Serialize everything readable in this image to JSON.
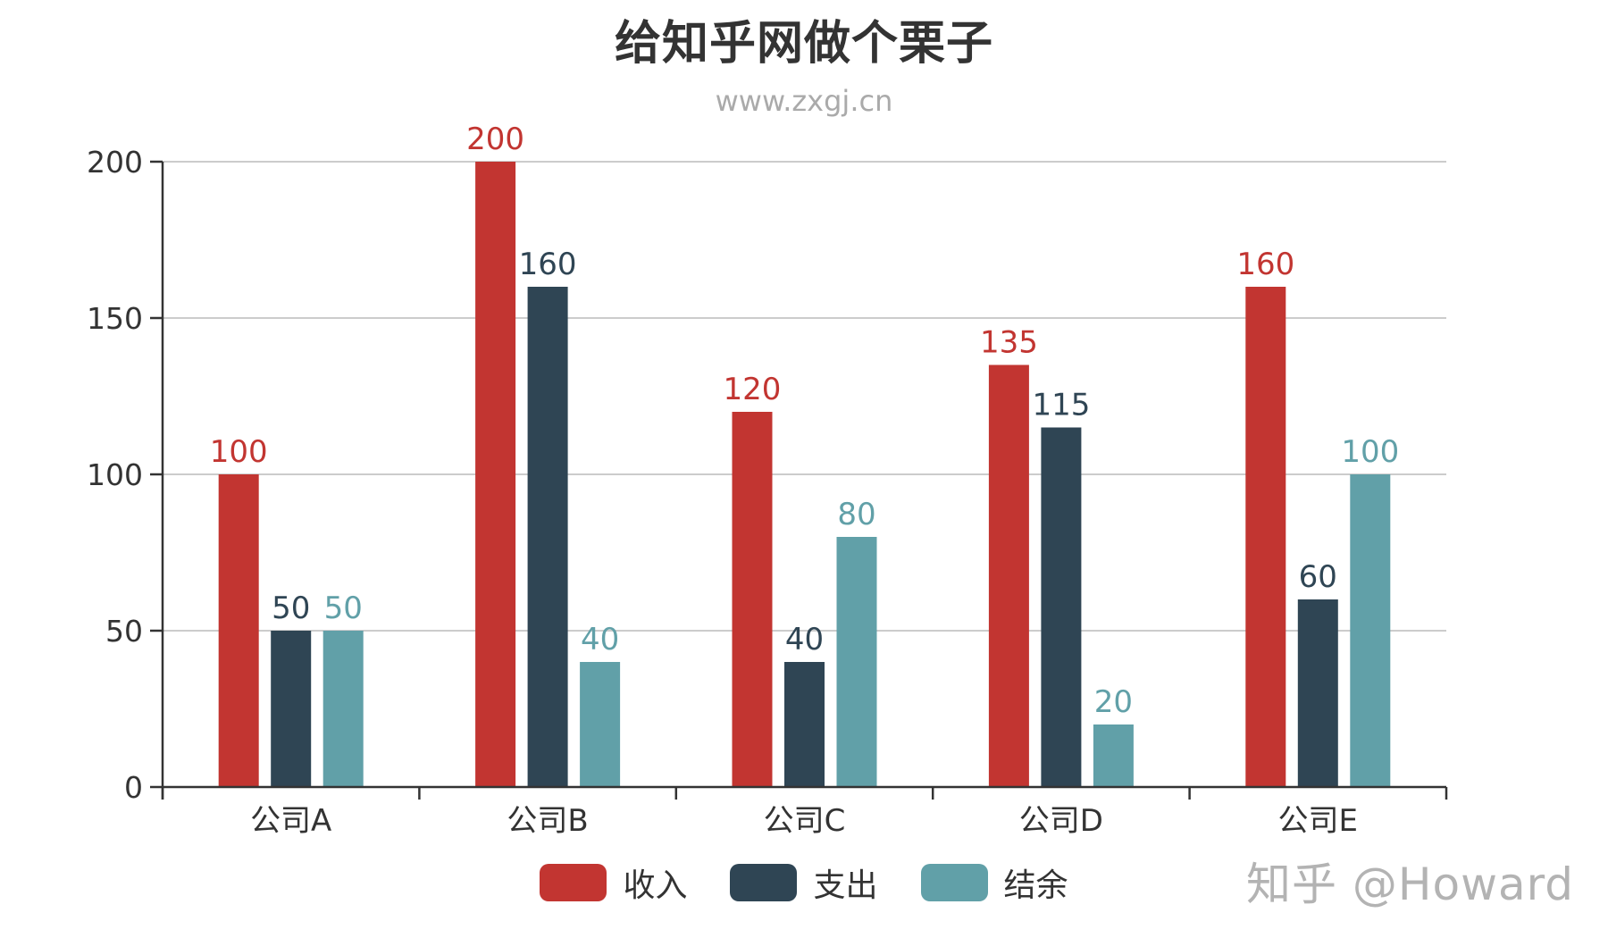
{
  "header": {
    "title": "给知乎网做个栗子",
    "subtitle": "www.zxgj.cn"
  },
  "watermark": "知乎 @Howard",
  "colors": {
    "收入": "#c23531",
    "支出": "#2f4554",
    "结余": "#61a0a8",
    "axis": "#333333",
    "grid": "#cccccc"
  },
  "legend": [
    {
      "label": "收入",
      "color": "#c23531"
    },
    {
      "label": "支出",
      "color": "#2f4554"
    },
    {
      "label": "结余",
      "color": "#61a0a8"
    }
  ],
  "chart_data": {
    "type": "bar",
    "title": "给知乎网做个栗子",
    "subtitle": "www.zxgj.cn",
    "xlabel": "",
    "ylabel": "",
    "categories": [
      "公司A",
      "公司B",
      "公司C",
      "公司D",
      "公司E"
    ],
    "series": [
      {
        "name": "收入",
        "color": "#c23531",
        "values": [
          100,
          200,
          120,
          135,
          160
        ]
      },
      {
        "name": "支出",
        "color": "#2f4554",
        "values": [
          50,
          160,
          40,
          115,
          60
        ]
      },
      {
        "name": "结余",
        "color": "#61a0a8",
        "values": [
          50,
          40,
          80,
          20,
          100
        ]
      }
    ],
    "ylim": [
      0,
      200
    ],
    "yticks": [
      0,
      50,
      100,
      150,
      200
    ],
    "grid": true,
    "data_labels": true,
    "legend_position": "bottom"
  }
}
